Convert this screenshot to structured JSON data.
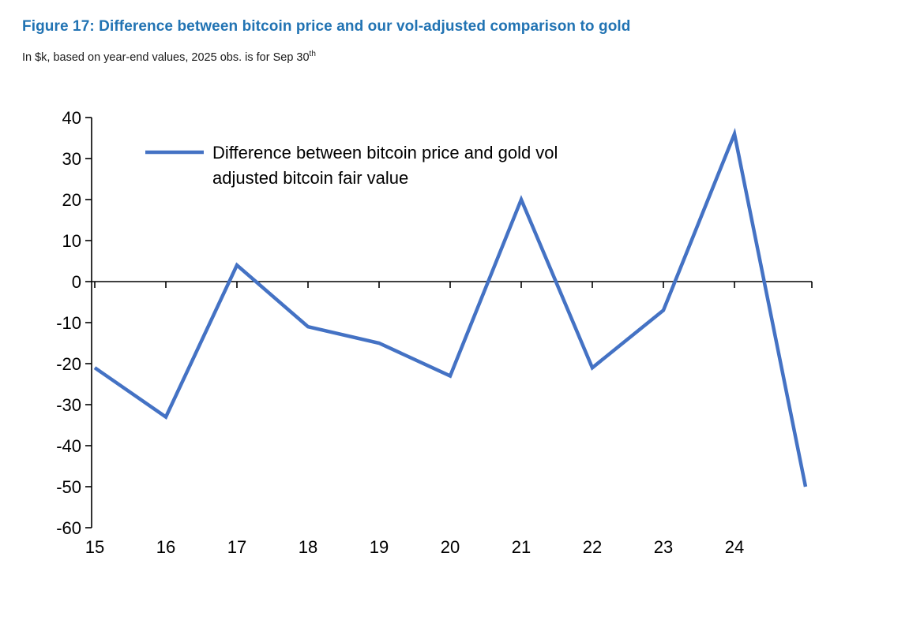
{
  "figure": {
    "title": "Figure 17: Difference between bitcoin price and our vol-adjusted comparison to gold",
    "title_color": "#2173b3",
    "subtitle": "In $k, based on year-end values, 2025 obs. is for Sep 30",
    "subtitle_superscript": "th"
  },
  "chart_data": {
    "type": "line",
    "title": "Difference between bitcoin price and our vol-adjusted comparison to gold",
    "unit": "$k",
    "x": [
      15,
      16,
      17,
      18,
      19,
      20,
      21,
      22,
      23,
      24,
      25
    ],
    "x_tick_labels": [
      "15",
      "16",
      "17",
      "18",
      "19",
      "20",
      "21",
      "22",
      "23",
      "24"
    ],
    "series": [
      {
        "name": "Difference between bitcoin price and gold vol adjusted bitcoin fair value",
        "legend_lines": [
          "Difference between bitcoin price and gold vol",
          "adjusted bitcoin fair value"
        ],
        "color": "#4472c4",
        "values": [
          -21,
          -33,
          4,
          -11,
          -15,
          -23,
          20,
          -21,
          -7,
          36,
          -50
        ]
      }
    ],
    "ylim": [
      -60,
      40
    ],
    "ytick_step": 10,
    "y_tick_labels": [
      "-60",
      "-50",
      "-40",
      "-30",
      "-20",
      "-10",
      "0",
      "10",
      "20",
      "30",
      "40"
    ],
    "grid": false,
    "axis_color": "#000000",
    "legend_position": "top-left-inside",
    "note": "last point is the 2025 observation (Sep 30)"
  }
}
